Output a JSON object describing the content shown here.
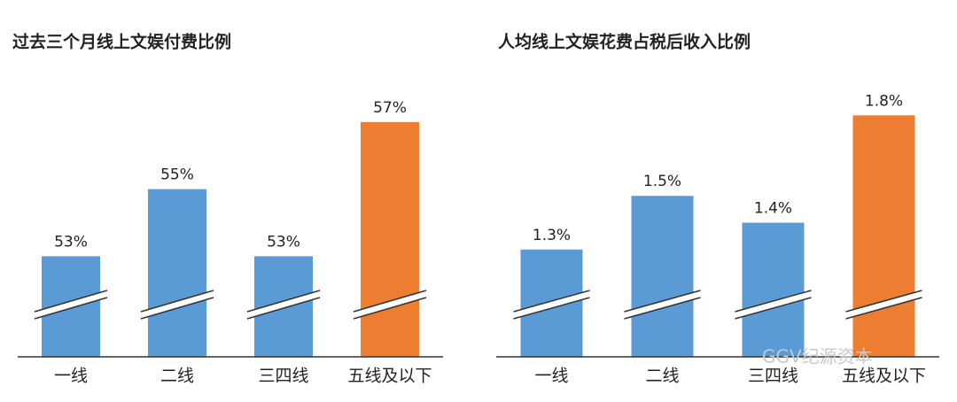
{
  "chart_data": [
    {
      "type": "bar",
      "title": "过去三个月线上文娱付费比例",
      "categories": [
        "一线",
        "二线",
        "三四线",
        "五线及以下"
      ],
      "values": [
        53,
        55,
        53,
        57
      ],
      "value_labels": [
        "53%",
        "55%",
        "53%",
        "57%"
      ],
      "colors": [
        "#5b9bd5",
        "#5b9bd5",
        "#5b9bd5",
        "#ed7d31"
      ],
      "ylim": [
        50,
        58
      ]
    },
    {
      "type": "bar",
      "title": "人均线上文娱花费占税后收入比例",
      "categories": [
        "一线",
        "二线",
        "三四线",
        "五线及以下"
      ],
      "values": [
        1.3,
        1.5,
        1.4,
        1.8
      ],
      "value_labels": [
        "1.3%",
        "1.5%",
        "1.4%",
        "1.8%"
      ],
      "colors": [
        "#5b9bd5",
        "#5b9bd5",
        "#5b9bd5",
        "#ed7d31"
      ],
      "ylim": [
        0.9,
        1.9
      ]
    }
  ],
  "watermark": "GGV纪源资本"
}
